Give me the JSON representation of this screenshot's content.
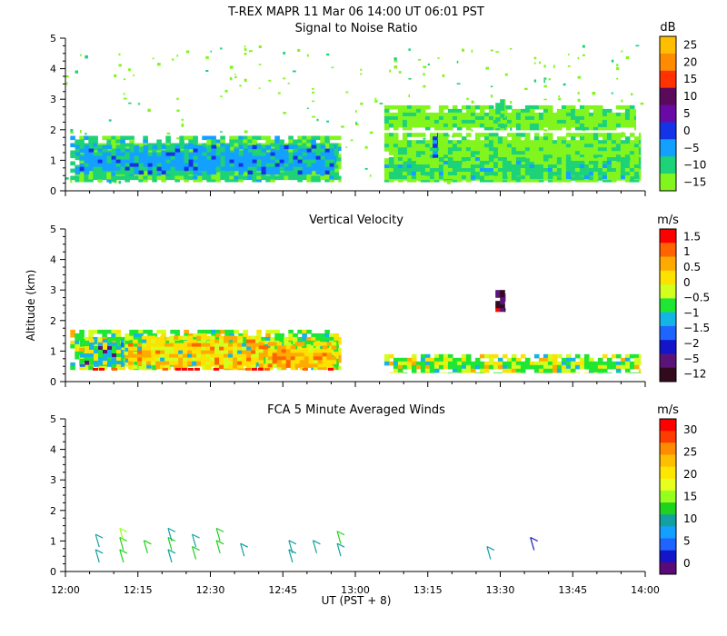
{
  "header": {
    "line1": "T-REX   MAPR 11 Mar 06   14:00 UT   06:01   PST"
  },
  "x_axis": {
    "label": "UT  (PST + 8)",
    "ticks": [
      "12:00",
      "12:15",
      "12:30",
      "12:45",
      "13:00",
      "13:15",
      "13:30",
      "13:45",
      "14:00"
    ]
  },
  "y_axis": {
    "label": "Altitude (km)",
    "ticks": [
      "0",
      "1",
      "2",
      "3",
      "4",
      "5"
    ]
  },
  "chart_data": [
    {
      "type": "heatmap",
      "title": "Signal to Noise Ratio",
      "xlabel": "",
      "ylabel": "",
      "xlim": [
        "12:00",
        "14:00"
      ],
      "ylim": [
        0,
        5
      ],
      "colorbar": {
        "unit": "dB",
        "levels": [
          "25",
          "20",
          "15",
          "10",
          "5",
          "0",
          "−5",
          "−10",
          "−15"
        ],
        "colors": [
          "#ffbf00",
          "#ff8c00",
          "#ff3200",
          "#5a0a5a",
          "#6a0aa6",
          "#1432e6",
          "#14a0ff",
          "#1ed278",
          "#82f51e"
        ]
      },
      "regions": [
        {
          "x": [
            "12:01",
            "12:57"
          ],
          "y": [
            0.3,
            1.8
          ],
          "value": "−10",
          "level": 1
        },
        {
          "x": [
            "12:02",
            "12:56"
          ],
          "y": [
            0.55,
            1.5
          ],
          "value": "−5",
          "level": 2
        },
        {
          "x": [
            "13:06",
            "13:59"
          ],
          "y": [
            0.3,
            1.9
          ],
          "value": "−15",
          "level": 0
        },
        {
          "x": [
            "13:06",
            "13:59"
          ],
          "y": [
            0.4,
            1.1
          ],
          "value": "−10",
          "level": 1
        },
        {
          "x": [
            "13:06",
            "13:58"
          ],
          "y": [
            2.0,
            2.8
          ],
          "value": "−15",
          "level": 0
        },
        {
          "x": [
            "13:16",
            "13:17"
          ],
          "y": [
            1.1,
            1.9
          ],
          "value": "0",
          "level": 3
        },
        {
          "x": [
            "13:29",
            "13:31"
          ],
          "y": [
            2.0,
            3.0
          ],
          "value": "−10",
          "level": 1
        }
      ],
      "grid": false
    },
    {
      "type": "heatmap",
      "title": "Vertical Velocity",
      "xlabel": "",
      "ylabel": "Altitude (km)",
      "xlim": [
        "12:00",
        "14:00"
      ],
      "ylim": [
        0,
        5
      ],
      "colorbar": {
        "unit": "m/s",
        "levels": [
          "1.5",
          "1",
          "0.5",
          "0",
          "−0.5",
          "−1",
          "−1.5",
          "−2",
          "−5",
          "−12"
        ],
        "colors": [
          "#ff0000",
          "#ff6400",
          "#ffaa00",
          "#ffe100",
          "#d2ff1e",
          "#1ee632",
          "#14b4e6",
          "#1e64ff",
          "#1414c8",
          "#5a1478",
          "#320a1e"
        ]
      },
      "regions": [
        {
          "x": [
            "12:01",
            "12:57"
          ],
          "y": [
            0.4,
            1.7
          ],
          "value": "−0.5",
          "level": 5
        },
        {
          "x": [
            "12:03",
            "12:12"
          ],
          "y": [
            0.5,
            1.4
          ],
          "value": "−1",
          "level": 6
        },
        {
          "x": [
            "12:13",
            "12:40"
          ],
          "y": [
            0.4,
            1.5
          ],
          "value": "0",
          "level": 3
        },
        {
          "x": [
            "12:40",
            "12:56"
          ],
          "y": [
            0.4,
            1.3
          ],
          "value": "0.5",
          "level": 2
        },
        {
          "x": [
            "13:06",
            "13:59"
          ],
          "y": [
            0.3,
            0.9
          ],
          "value": "−0.5",
          "level": 5
        },
        {
          "x": [
            "13:29",
            "13:31"
          ],
          "y": [
            2.3,
            3.0
          ],
          "value": "−5",
          "level": 9
        }
      ],
      "grid": false
    },
    {
      "type": "scatter",
      "title": "FCA 5 Minute Averaged Winds",
      "xlabel": "UT  (PST + 8)",
      "ylabel": "",
      "xlim": [
        "12:00",
        "14:00"
      ],
      "ylim": [
        0,
        5
      ],
      "colorbar": {
        "unit": "m/s",
        "levels": [
          "30",
          "25",
          "20",
          "15",
          "10",
          "5",
          "0"
        ],
        "colors": [
          "#ff0000",
          "#ff3c00",
          "#ff8c00",
          "#ffbe00",
          "#ffe600",
          "#e6ff1e",
          "#96ff1e",
          "#1ed21e",
          "#14a0a0",
          "#14a0ff",
          "#1e64ff",
          "#1414c8",
          "#5a0a78"
        ]
      },
      "barbs": [
        {
          "x": "12:07",
          "y": 0.3,
          "speed": 9
        },
        {
          "x": "12:07",
          "y": 0.8,
          "speed": 10
        },
        {
          "x": "12:12",
          "y": 0.3,
          "speed": 12
        },
        {
          "x": "12:12",
          "y": 0.7,
          "speed": 13
        },
        {
          "x": "12:12",
          "y": 1.0,
          "speed": 14
        },
        {
          "x": "12:17",
          "y": 0.6,
          "speed": 12
        },
        {
          "x": "12:22",
          "y": 0.3,
          "speed": 11
        },
        {
          "x": "12:22",
          "y": 0.7,
          "speed": 12
        },
        {
          "x": "12:22",
          "y": 1.0,
          "speed": 9
        },
        {
          "x": "12:27",
          "y": 0.4,
          "speed": 12
        },
        {
          "x": "12:27",
          "y": 0.8,
          "speed": 11
        },
        {
          "x": "12:32",
          "y": 0.6,
          "speed": 13
        },
        {
          "x": "12:32",
          "y": 1.0,
          "speed": 12
        },
        {
          "x": "12:37",
          "y": 0.5,
          "speed": 11
        },
        {
          "x": "12:47",
          "y": 0.3,
          "speed": 9
        },
        {
          "x": "12:47",
          "y": 0.6,
          "speed": 10
        },
        {
          "x": "12:52",
          "y": 0.6,
          "speed": 10
        },
        {
          "x": "12:57",
          "y": 0.5,
          "speed": 11
        },
        {
          "x": "12:57",
          "y": 0.9,
          "speed": 13
        },
        {
          "x": "13:28",
          "y": 0.4,
          "speed": 10
        },
        {
          "x": "13:37",
          "y": 0.7,
          "speed": 2
        }
      ],
      "grid": false
    }
  ]
}
